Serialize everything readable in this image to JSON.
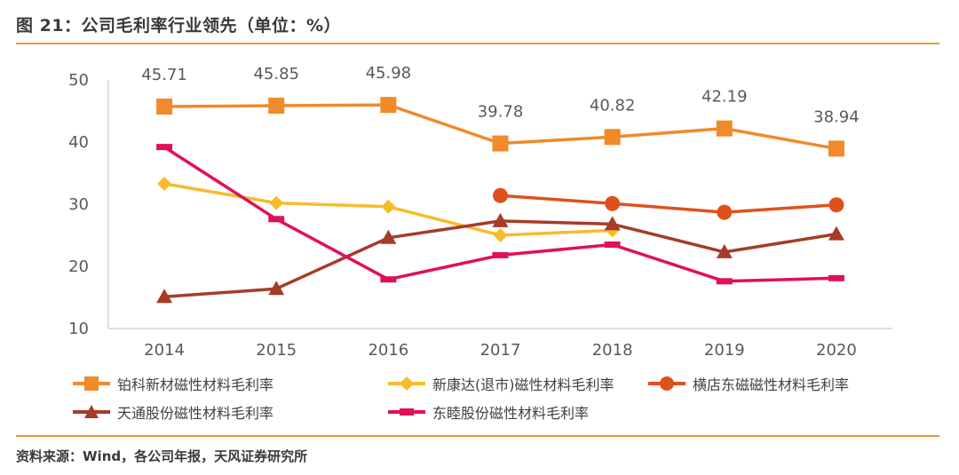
{
  "header": {
    "title": "图 21：公司毛利率行业领先（单位：%）"
  },
  "footer": {
    "source": "资料来源：Wind，各公司年报，天风证券研究所"
  },
  "chart_data": {
    "type": "line",
    "title": "公司毛利率行业领先（单位：%）",
    "categories": [
      "2014",
      "2015",
      "2016",
      "2017",
      "2018",
      "2019",
      "2020"
    ],
    "ylim": [
      10,
      50
    ],
    "yticks": [
      10,
      20,
      30,
      40,
      50
    ],
    "grid": false,
    "legend_position": "bottom",
    "series": [
      {
        "name": "铂科新材磁性材料毛利率",
        "color": "#f08a2a",
        "marker": "square",
        "values": [
          45.71,
          45.85,
          45.98,
          39.78,
          40.82,
          42.19,
          38.94
        ],
        "labels": [
          "45.71",
          "45.85",
          "45.98",
          "39.78",
          "40.82",
          "42.19",
          "38.94"
        ]
      },
      {
        "name": "新康达(退市)磁性材料毛利率",
        "color": "#f8bb2c",
        "marker": "diamond",
        "values": [
          33.3,
          30.2,
          29.6,
          25.0,
          25.8,
          null,
          null
        ]
      },
      {
        "name": "横店东磁磁性材料毛利率",
        "color": "#e0501c",
        "marker": "circle",
        "values": [
          null,
          null,
          null,
          31.4,
          30.1,
          28.7,
          29.9
        ]
      },
      {
        "name": "天通股份磁性材料毛利率",
        "color": "#a63c28",
        "marker": "triangle",
        "values": [
          15.1,
          16.4,
          24.6,
          27.3,
          26.8,
          22.3,
          25.2
        ]
      },
      {
        "name": "东睦股份磁性材料毛利率",
        "color": "#e0105a",
        "marker": "dash",
        "values": [
          39.2,
          27.6,
          17.9,
          21.8,
          23.5,
          17.6,
          18.1
        ]
      }
    ]
  }
}
